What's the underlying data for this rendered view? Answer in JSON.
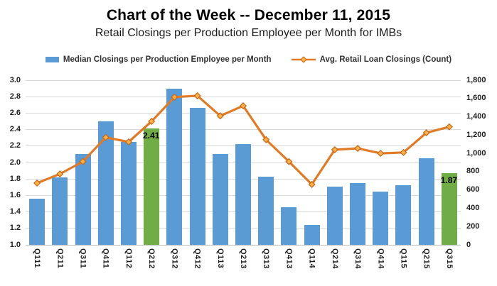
{
  "header": {
    "title": "Chart of the Week -- December 11, 2015",
    "subtitle": "Retail Closings per Production Employee per Month for IMBs"
  },
  "legend": {
    "bar_series_label": "Median Closings per Production Employee per Month",
    "line_series_label": "Avg. Retail Loan Closings (Count)"
  },
  "colors": {
    "bar": "#5B9BD5",
    "bar_highlight": "#70AD47",
    "line": "#DF7B28",
    "marker_fill": "#FFB04A",
    "marker_stroke": "#C26818",
    "gridline": "#D9D9D9",
    "axis_line": "#BFBFBF",
    "axis_text": "#1F1F1F"
  },
  "chart_data": {
    "type": "bar",
    "subtype": "bar-and-line-combo",
    "title": "Chart of the Week -- December 11, 2015",
    "subtitle": "Retail Closings per Production Employee per Month for IMBs",
    "grid": "horizontal-on",
    "legend_position": "top",
    "categories": [
      "Q111",
      "Q211",
      "Q311",
      "Q411",
      "Q112",
      "Q212",
      "Q312",
      "Q412",
      "Q113",
      "Q213",
      "Q313",
      "Q413",
      "Q114",
      "Q214",
      "Q314",
      "Q414",
      "Q115",
      "Q215",
      "Q315"
    ],
    "series": [
      {
        "name": "Median Closings per Production Employee per Month",
        "type": "bar",
        "axis": "left",
        "values": [
          1.56,
          1.82,
          2.1,
          2.5,
          2.25,
          2.41,
          2.9,
          2.66,
          2.1,
          2.22,
          1.83,
          1.46,
          1.24,
          1.71,
          1.75,
          1.65,
          1.72,
          2.05,
          1.87
        ],
        "highlight_indices": [
          5,
          18
        ],
        "data_labels": {
          "5": "2.41",
          "18": "1.87"
        }
      },
      {
        "name": "Avg. Retail Loan Closings (Count)",
        "type": "line",
        "axis": "right",
        "values": [
          675,
          775,
          910,
          1175,
          1125,
          1350,
          1615,
          1630,
          1410,
          1520,
          1150,
          910,
          660,
          1040,
          1055,
          1000,
          1010,
          1225,
          1290
        ]
      }
    ],
    "axes": {
      "left": {
        "min": 1.0,
        "max": 3.0,
        "step": 0.2,
        "ticks": [
          "3.0",
          "2.8",
          "2.6",
          "2.4",
          "2.2",
          "2.0",
          "1.8",
          "1.6",
          "1.4",
          "1.2",
          "1.0"
        ]
      },
      "right": {
        "min": 0,
        "max": 1800,
        "step": 200,
        "ticks": [
          "1,800",
          "1,600",
          "1,400",
          "1,200",
          "1,000",
          "800",
          "600",
          "400",
          "200",
          "0"
        ]
      }
    }
  }
}
